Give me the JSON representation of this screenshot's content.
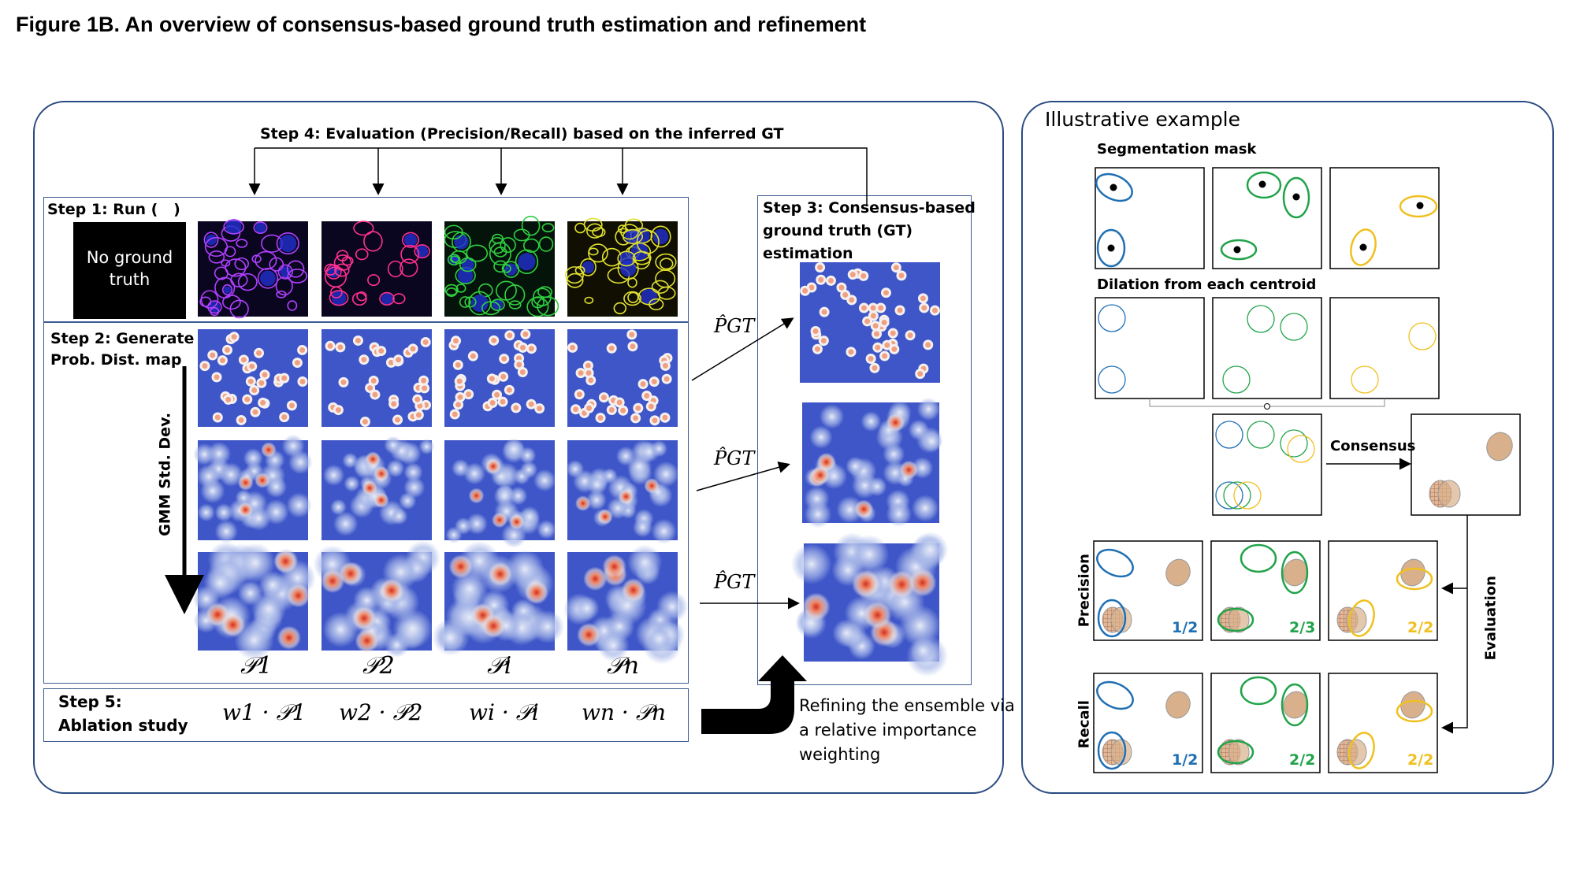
{
  "title": "Figure 1B. An overview of consensus-based ground truth estimation and refinement",
  "main_panel": {
    "step4": "Step 4: Evaluation (Precision/Recall) based on the inferred GT",
    "step1": "Step 1: Run (   )",
    "no_gt_line1": "No ground",
    "no_gt_line2": "truth",
    "step2_line1": "Step 2: Generate",
    "step2_line2": "Prob. Dist. map",
    "gmm_axis": "GMM Std. Dev.",
    "step3_line1": "Step 3: Consensus-based",
    "step3_line2": "ground truth (GT)",
    "step3_line3": "estimation",
    "p_hat_gt": "P̂GT",
    "p_labels": [
      "𝒫1",
      "𝒫2",
      "𝒫i",
      "𝒫n"
    ],
    "step5_line1": "Step 5:",
    "step5_line2": "Ablation study",
    "weighted_labels": [
      "w1 · 𝒫1",
      "w2 · 𝒫2",
      "wi · 𝒫i",
      "wn · 𝒫n"
    ],
    "refine_line1": "Refining the ensemble via",
    "refine_line2": "a relative importance",
    "refine_line3": "weighting"
  },
  "example_panel": {
    "title": "Illustrative example",
    "seg_mask": "Segmentation mask",
    "dilation": "Dilation from each centroid",
    "consensus": "Consensus",
    "precision": "Precision",
    "recall": "Recall",
    "evaluation": "Evaluation",
    "precision_fractions": [
      "1/2",
      "2/3",
      "2/2"
    ],
    "recall_fractions": [
      "1/2",
      "2/2",
      "2/2"
    ]
  },
  "colors": {
    "blue": "#1f6fb4",
    "green": "#22a34a",
    "yellow": "#f0c020",
    "frame": "#2a4a80",
    "consensus_fill": "#d8b08c"
  }
}
